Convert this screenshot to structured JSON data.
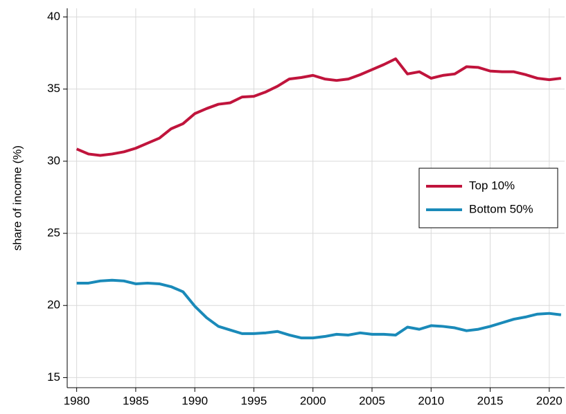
{
  "chart_data": {
    "type": "line",
    "y_label": "share of income (%)",
    "x": [
      1980,
      1981,
      1982,
      1983,
      1984,
      1985,
      1986,
      1987,
      1988,
      1989,
      1990,
      1991,
      1992,
      1993,
      1994,
      1995,
      1996,
      1997,
      1998,
      1999,
      2000,
      2001,
      2002,
      2003,
      2004,
      2005,
      2006,
      2007,
      2008,
      2009,
      2010,
      2011,
      2012,
      2013,
      2014,
      2015,
      2016,
      2017,
      2018,
      2019,
      2020,
      2021
    ],
    "series": [
      {
        "name": "Top 10%",
        "color": "#c0143c",
        "values": [
          30.85,
          30.5,
          30.4,
          30.5,
          30.65,
          30.9,
          31.25,
          31.6,
          32.25,
          32.6,
          33.3,
          33.65,
          33.95,
          34.05,
          34.45,
          34.5,
          34.8,
          35.2,
          35.7,
          35.8,
          35.95,
          35.7,
          35.6,
          35.7,
          36.0,
          36.35,
          36.7,
          37.1,
          36.05,
          36.2,
          35.75,
          35.95,
          36.05,
          36.55,
          36.5,
          36.25,
          36.2,
          36.2,
          36.0,
          35.75,
          35.65,
          35.75
        ]
      },
      {
        "name": "Bottom 50%",
        "color": "#1a8ab9",
        "values": [
          21.55,
          21.55,
          21.7,
          21.75,
          21.7,
          21.5,
          21.55,
          21.5,
          21.3,
          20.95,
          19.95,
          19.15,
          18.55,
          18.3,
          18.05,
          18.05,
          18.1,
          18.2,
          17.95,
          17.75,
          17.75,
          17.85,
          18.0,
          17.95,
          18.1,
          18.0,
          18.0,
          17.95,
          18.5,
          18.35,
          18.6,
          18.55,
          18.45,
          18.25,
          18.35,
          18.55,
          18.8,
          19.05,
          19.2,
          19.4,
          19.45,
          19.35
        ]
      }
    ],
    "xlim": [
      1979.2,
      2021.3
    ],
    "xticks": [
      1980,
      1985,
      1990,
      1995,
      2000,
      2005,
      2010,
      2015,
      2020
    ],
    "ylim": [
      14.3,
      40.6
    ],
    "yticks": [
      15,
      20,
      25,
      30,
      35,
      40
    ],
    "grid": true,
    "legend": "center right"
  }
}
